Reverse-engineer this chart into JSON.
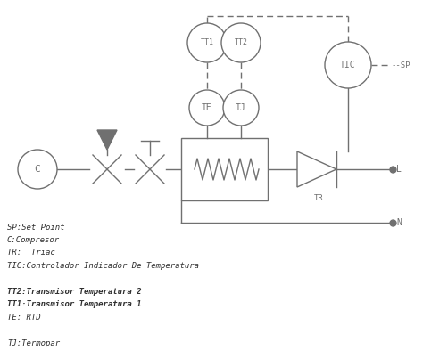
{
  "bg_color": "#ffffff",
  "line_color": "#707070",
  "legend_lines": [
    "SP:Set Point",
    "C:Compresor",
    "TR:  Triac",
    "TIC:Controlador Indicador De Temperatura",
    "",
    "TT2:Transmisor Temperatura 2",
    "TT1:Transmisor Temperatura 1",
    "TE: RTD",
    "",
    "TJ:Termopar"
  ],
  "legend_bold": [
    false,
    false,
    false,
    false,
    false,
    true,
    true,
    false,
    false,
    false
  ]
}
